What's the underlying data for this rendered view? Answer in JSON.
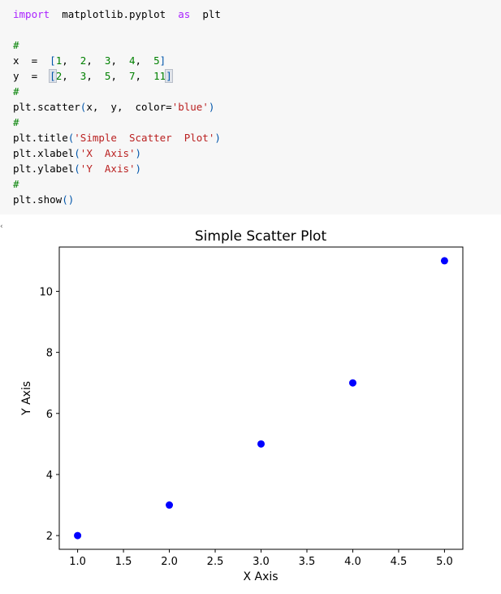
{
  "code_cell": {
    "lines": [
      [
        {
          "t": "import",
          "c": "kw"
        },
        {
          "t": "  matplotlib.pyplot  "
        },
        {
          "t": "as",
          "c": "kw"
        },
        {
          "t": "  plt"
        }
      ],
      [],
      [
        {
          "t": "#",
          "c": "cm"
        }
      ],
      [
        {
          "t": "x  =  "
        },
        {
          "t": "[",
          "c": "pn"
        },
        {
          "t": "1",
          "c": "num"
        },
        {
          "t": ",  "
        },
        {
          "t": "2",
          "c": "num"
        },
        {
          "t": ",  "
        },
        {
          "t": "3",
          "c": "num"
        },
        {
          "t": ",  "
        },
        {
          "t": "4",
          "c": "num"
        },
        {
          "t": ",  "
        },
        {
          "t": "5",
          "c": "num"
        },
        {
          "t": "]",
          "c": "pn"
        }
      ],
      [
        {
          "t": "y  =  "
        },
        {
          "t": "[",
          "c": "pn bracket-hl"
        },
        {
          "t": "2",
          "c": "num"
        },
        {
          "t": ",  "
        },
        {
          "t": "3",
          "c": "num"
        },
        {
          "t": ",  "
        },
        {
          "t": "5",
          "c": "num"
        },
        {
          "t": ",  "
        },
        {
          "t": "7",
          "c": "num"
        },
        {
          "t": ",  "
        },
        {
          "t": "11",
          "c": "num"
        },
        {
          "t": "]",
          "c": "pn bracket-hl"
        }
      ],
      [
        {
          "t": "#",
          "c": "cm"
        }
      ],
      [
        {
          "t": "plt.scatter"
        },
        {
          "t": "(",
          "c": "pn"
        },
        {
          "t": "x,  y,  color="
        },
        {
          "t": "'blue'",
          "c": "str"
        },
        {
          "t": ")",
          "c": "pn"
        }
      ],
      [
        {
          "t": "#",
          "c": "cm"
        }
      ],
      [
        {
          "t": "plt.title"
        },
        {
          "t": "(",
          "c": "pn"
        },
        {
          "t": "'Simple  Scatter  Plot'",
          "c": "str"
        },
        {
          "t": ")",
          "c": "pn"
        }
      ],
      [
        {
          "t": "plt.xlabel"
        },
        {
          "t": "(",
          "c": "pn"
        },
        {
          "t": "'X  Axis'",
          "c": "str"
        },
        {
          "t": ")",
          "c": "pn"
        }
      ],
      [
        {
          "t": "plt.ylabel"
        },
        {
          "t": "(",
          "c": "pn"
        },
        {
          "t": "'Y  Axis'",
          "c": "str"
        },
        {
          "t": ")",
          "c": "pn"
        }
      ],
      [
        {
          "t": "#",
          "c": "cm"
        }
      ],
      [
        {
          "t": "plt.show"
        },
        {
          "t": "()",
          "c": "pn"
        }
      ]
    ]
  },
  "colors": {
    "marker": "#0000ff",
    "axes": "#000000"
  },
  "chart_data": {
    "type": "scatter",
    "title": "Simple Scatter Plot",
    "xlabel": "X Axis",
    "ylabel": "Y Axis",
    "x": [
      1,
      2,
      3,
      4,
      5
    ],
    "y": [
      2,
      3,
      5,
      7,
      11
    ],
    "xlim": [
      0.8,
      5.2
    ],
    "ylim": [
      1.55,
      11.45
    ],
    "xticks": [
      "1.0",
      "1.5",
      "2.0",
      "2.5",
      "3.0",
      "3.5",
      "4.0",
      "4.5",
      "5.0"
    ],
    "xtick_values": [
      1.0,
      1.5,
      2.0,
      2.5,
      3.0,
      3.5,
      4.0,
      4.5,
      5.0
    ],
    "yticks": [
      "2",
      "4",
      "6",
      "8",
      "10"
    ],
    "ytick_values": [
      2,
      4,
      6,
      8,
      10
    ],
    "grid": false,
    "legend": false
  }
}
